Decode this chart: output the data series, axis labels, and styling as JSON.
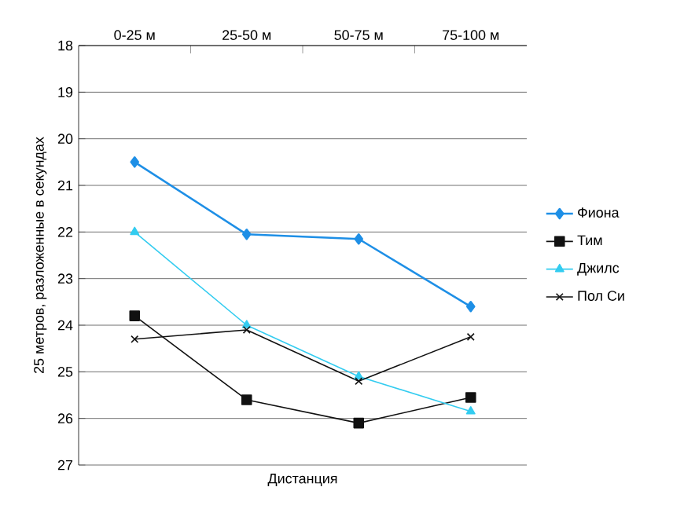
{
  "chart_data": {
    "type": "line",
    "xlabel": "Дистанция",
    "ylabel": "25 метров, разложенные в секундах",
    "categories": [
      "0-25 м",
      "25-50 м",
      "50-75 м",
      "75-100 м"
    ],
    "series": [
      {
        "name": "Фиона",
        "color": "#1e8fe6",
        "marker": "diamond",
        "values": [
          20.5,
          22.05,
          22.15,
          23.6
        ]
      },
      {
        "name": "Тим",
        "color": "#111111",
        "marker": "square",
        "values": [
          23.8,
          25.6,
          26.1,
          25.55
        ]
      },
      {
        "name": "Джилс",
        "color": "#33ccf0",
        "marker": "triangle",
        "values": [
          22.0,
          24.0,
          25.1,
          25.85
        ]
      },
      {
        "name": "Пол Си",
        "color": "#111111",
        "marker": "cross",
        "values": [
          24.3,
          24.1,
          25.2,
          24.25
        ]
      }
    ],
    "ylim": [
      27,
      18
    ],
    "yticks": [
      18,
      19,
      20,
      21,
      22,
      23,
      24,
      25,
      26,
      27
    ],
    "grid": "y",
    "legend": "right"
  }
}
